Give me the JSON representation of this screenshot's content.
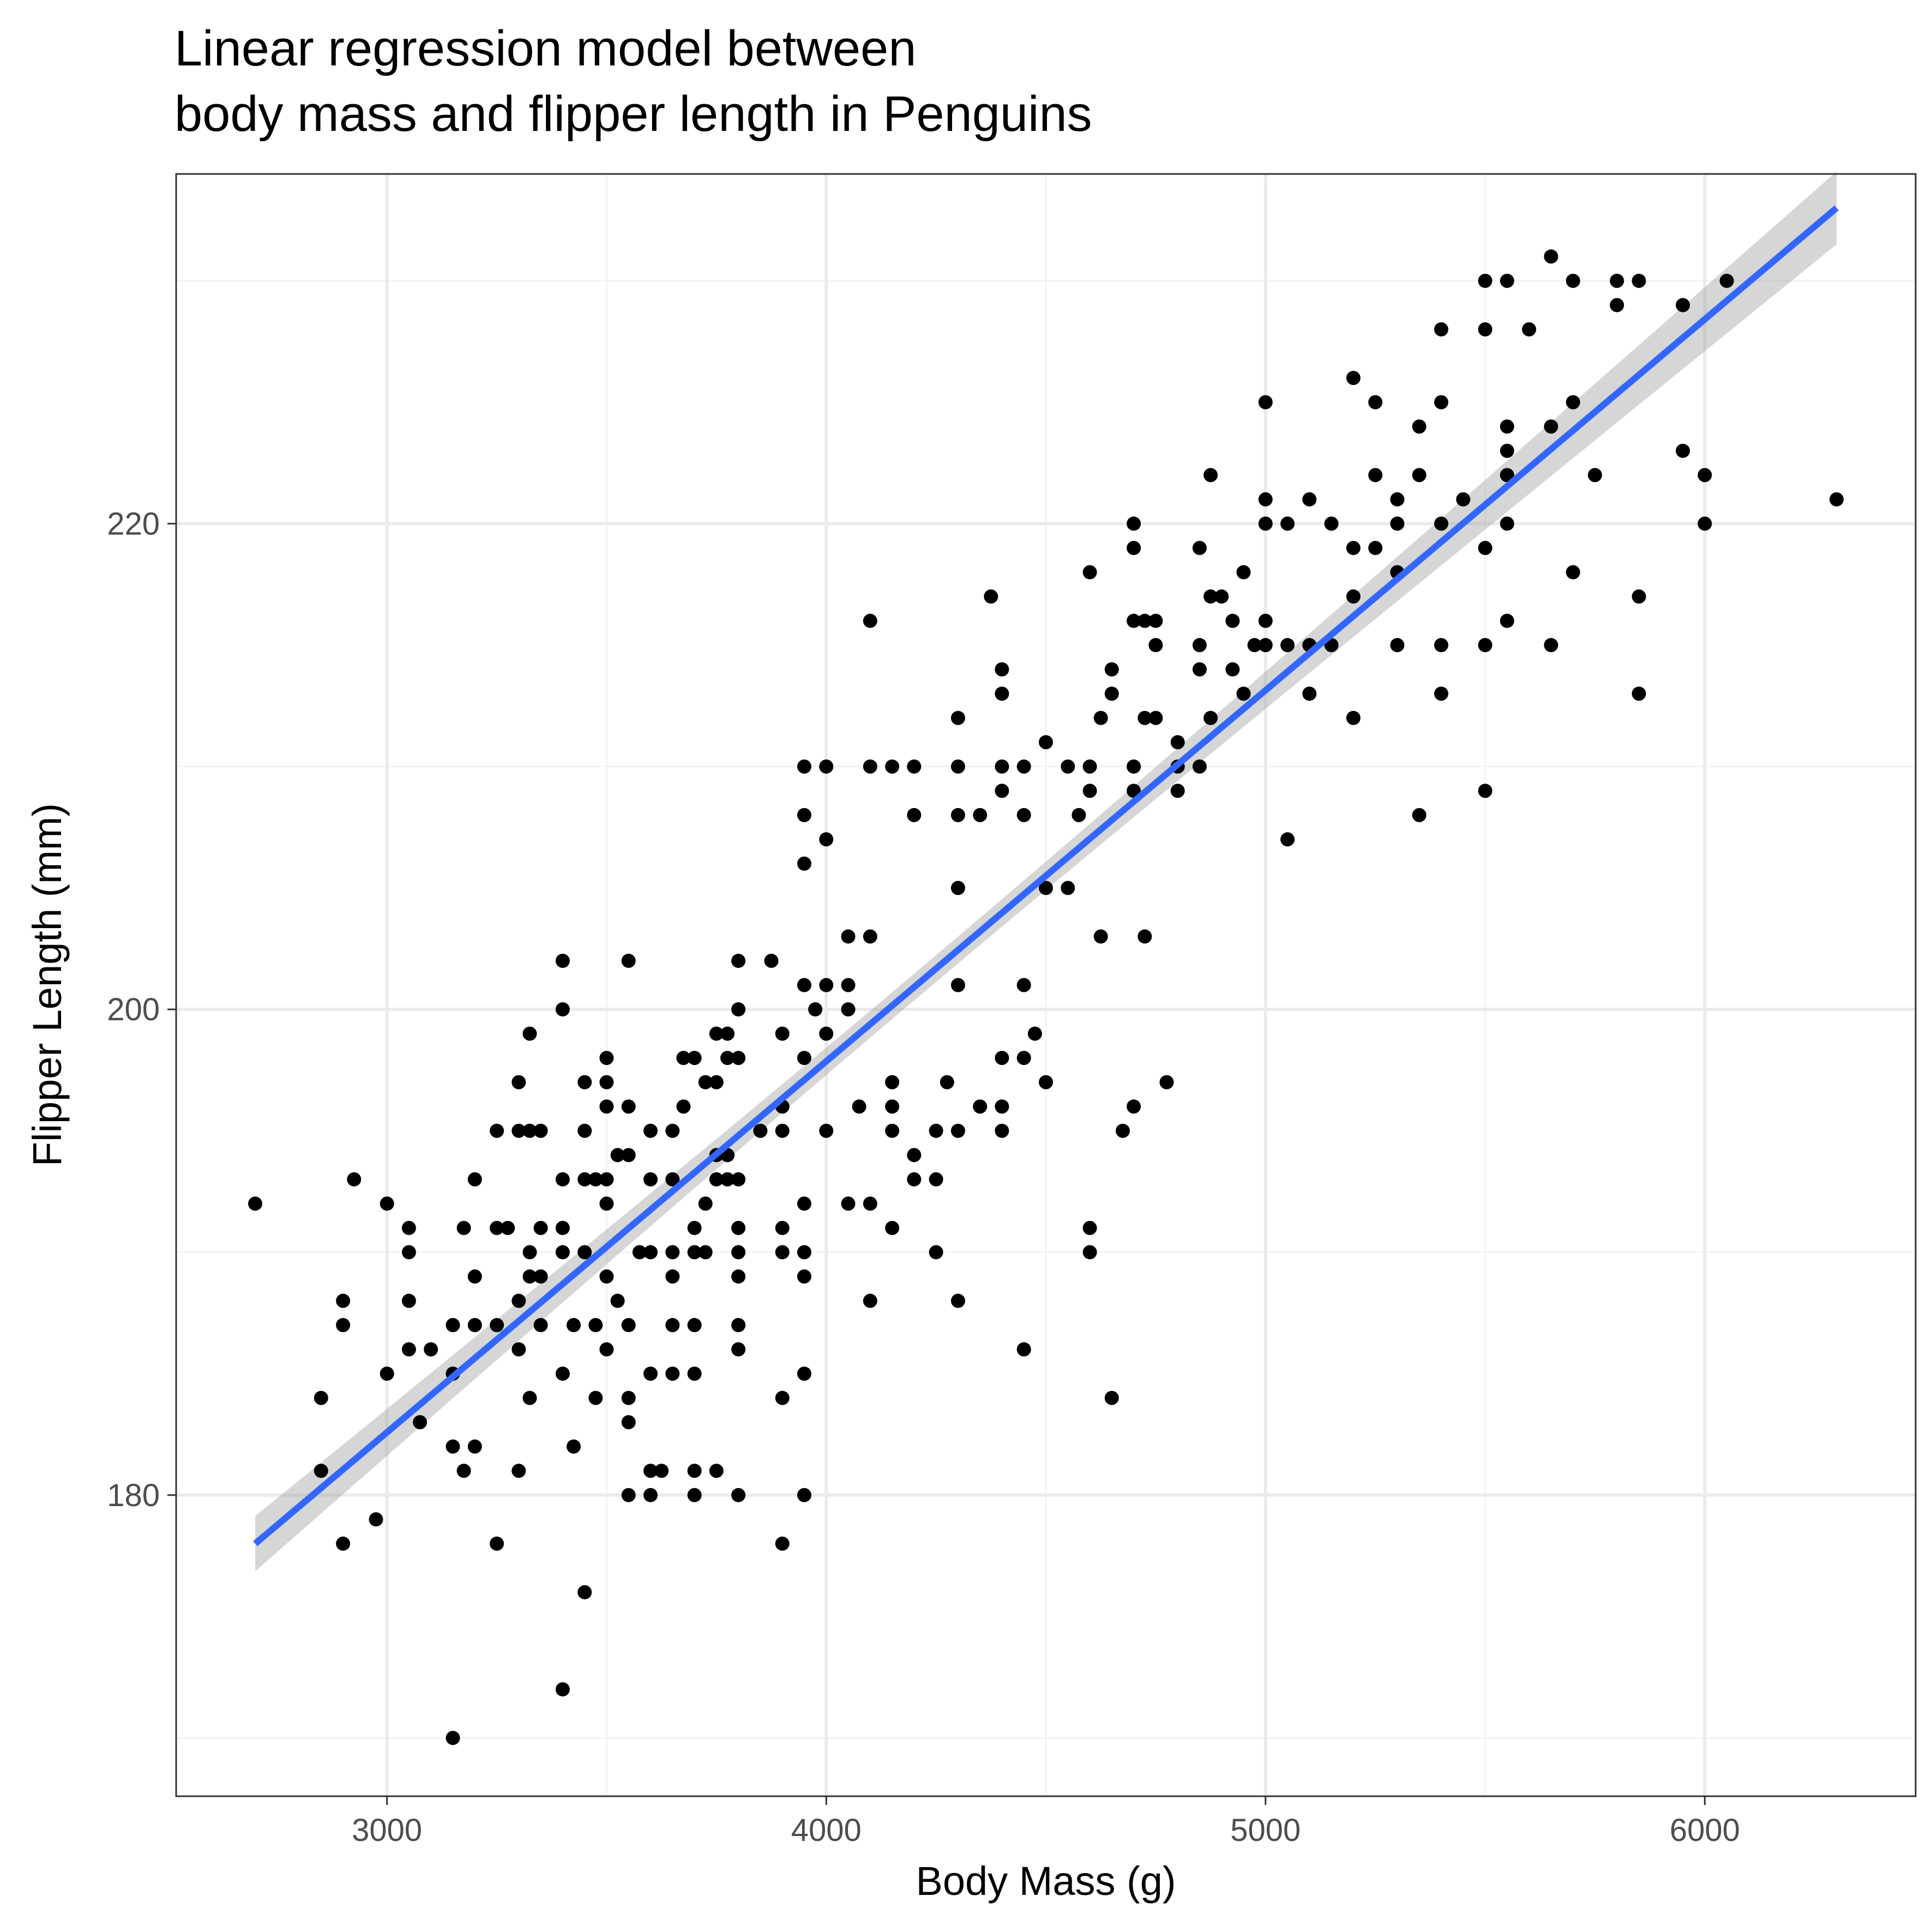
{
  "chart_data": {
    "type": "scatter",
    "title_lines": [
      "Linear regression model between",
      "body mass and flipper length in Penguins"
    ],
    "xlabel": "Body Mass (g)",
    "ylabel": "Flipper Length (mm)",
    "xlim": [
      2520,
      6480
    ],
    "ylim": [
      167.6,
      234.4
    ],
    "x_ticks": [
      3000,
      4000,
      5000,
      6000
    ],
    "x_tick_labels": [
      "3000",
      "4000",
      "5000",
      "6000"
    ],
    "x_minor_ticks": [
      3500,
      4500,
      5500
    ],
    "y_ticks": [
      180,
      200,
      220
    ],
    "y_tick_labels": [
      "180",
      "200",
      "220"
    ],
    "y_minor_ticks": [
      170,
      190,
      210,
      230
    ],
    "grid": true,
    "colors": {
      "points": "#000000",
      "line": "#3366FF",
      "ribbon": "#999999",
      "grid_major": "#ebebeb",
      "grid_minor": "#f3f3f3",
      "panel_border": "#333333",
      "tick_label": "#4d4d4d"
    },
    "regression": {
      "x": [
        2700,
        6300
      ],
      "y": [
        178.0,
        233.0
      ],
      "ci_halfwidth_ends": 1.5,
      "ci_halfwidth_center": 0.55,
      "x_center": 4200
    },
    "points": [
      [
        2700,
        192
      ],
      [
        2850,
        184
      ],
      [
        2850,
        181
      ],
      [
        2900,
        188
      ],
      [
        2900,
        187
      ],
      [
        2900,
        178
      ],
      [
        2925,
        193
      ],
      [
        2975,
        179
      ],
      [
        3000,
        192
      ],
      [
        3000,
        185
      ],
      [
        3050,
        191
      ],
      [
        3050,
        190
      ],
      [
        3050,
        188
      ],
      [
        3050,
        186
      ],
      [
        3075,
        183
      ],
      [
        3100,
        186
      ],
      [
        3150,
        187
      ],
      [
        3150,
        185
      ],
      [
        3150,
        182
      ],
      [
        3150,
        170
      ],
      [
        3175,
        191
      ],
      [
        3175,
        181
      ],
      [
        3200,
        193
      ],
      [
        3200,
        189
      ],
      [
        3200,
        187
      ],
      [
        3200,
        182
      ],
      [
        3250,
        195
      ],
      [
        3250,
        191
      ],
      [
        3250,
        187
      ],
      [
        3250,
        178
      ],
      [
        3275,
        191
      ],
      [
        3300,
        197
      ],
      [
        3300,
        195
      ],
      [
        3300,
        188
      ],
      [
        3300,
        186
      ],
      [
        3300,
        181
      ],
      [
        3325,
        199
      ],
      [
        3325,
        195
      ],
      [
        3325,
        190
      ],
      [
        3325,
        189
      ],
      [
        3325,
        184
      ],
      [
        3350,
        195
      ],
      [
        3350,
        191
      ],
      [
        3350,
        189
      ],
      [
        3350,
        187
      ],
      [
        3400,
        202
      ],
      [
        3400,
        200
      ],
      [
        3400,
        193
      ],
      [
        3400,
        191
      ],
      [
        3400,
        190
      ],
      [
        3400,
        185
      ],
      [
        3400,
        172
      ],
      [
        3425,
        187
      ],
      [
        3425,
        182
      ],
      [
        3450,
        197
      ],
      [
        3450,
        195
      ],
      [
        3450,
        193
      ],
      [
        3450,
        190
      ],
      [
        3450,
        176
      ],
      [
        3475,
        193
      ],
      [
        3475,
        187
      ],
      [
        3475,
        184
      ],
      [
        3500,
        198
      ],
      [
        3500,
        197
      ],
      [
        3500,
        196
      ],
      [
        3500,
        193
      ],
      [
        3500,
        192
      ],
      [
        3500,
        189
      ],
      [
        3500,
        186
      ],
      [
        3525,
        194
      ],
      [
        3525,
        188
      ],
      [
        3550,
        202
      ],
      [
        3550,
        196
      ],
      [
        3550,
        194
      ],
      [
        3550,
        187
      ],
      [
        3550,
        184
      ],
      [
        3550,
        183
      ],
      [
        3550,
        180
      ],
      [
        3575,
        190
      ],
      [
        3600,
        195
      ],
      [
        3600,
        193
      ],
      [
        3600,
        190
      ],
      [
        3600,
        185
      ],
      [
        3600,
        181
      ],
      [
        3600,
        180
      ],
      [
        3625,
        181
      ],
      [
        3650,
        195
      ],
      [
        3650,
        193
      ],
      [
        3650,
        190
      ],
      [
        3650,
        189
      ],
      [
        3650,
        187
      ],
      [
        3650,
        185
      ],
      [
        3675,
        196
      ],
      [
        3675,
        198
      ],
      [
        3700,
        198
      ],
      [
        3700,
        191
      ],
      [
        3700,
        190
      ],
      [
        3700,
        187
      ],
      [
        3700,
        185
      ],
      [
        3700,
        181
      ],
      [
        3700,
        180
      ],
      [
        3725,
        197
      ],
      [
        3725,
        192
      ],
      [
        3725,
        190
      ],
      [
        3750,
        199
      ],
      [
        3750,
        197
      ],
      [
        3750,
        194
      ],
      [
        3750,
        193
      ],
      [
        3750,
        181
      ],
      [
        3775,
        199
      ],
      [
        3775,
        198
      ],
      [
        3775,
        194
      ],
      [
        3775,
        193
      ],
      [
        3800,
        202
      ],
      [
        3800,
        200
      ],
      [
        3800,
        198
      ],
      [
        3800,
        193
      ],
      [
        3800,
        191
      ],
      [
        3800,
        190
      ],
      [
        3800,
        189
      ],
      [
        3800,
        187
      ],
      [
        3800,
        186
      ],
      [
        3800,
        180
      ],
      [
        3850,
        195
      ],
      [
        3875,
        202
      ],
      [
        3900,
        199
      ],
      [
        3900,
        196
      ],
      [
        3900,
        195
      ],
      [
        3900,
        191
      ],
      [
        3900,
        190
      ],
      [
        3900,
        184
      ],
      [
        3900,
        178
      ],
      [
        3950,
        210
      ],
      [
        3950,
        208
      ],
      [
        3950,
        206
      ],
      [
        3950,
        201
      ],
      [
        3950,
        198
      ],
      [
        3950,
        192
      ],
      [
        3950,
        190
      ],
      [
        3950,
        189
      ],
      [
        3950,
        185
      ],
      [
        3950,
        180
      ],
      [
        3975,
        200
      ],
      [
        4000,
        210
      ],
      [
        4000,
        207
      ],
      [
        4000,
        201
      ],
      [
        4000,
        199
      ],
      [
        4000,
        195
      ],
      [
        4050,
        203
      ],
      [
        4050,
        201
      ],
      [
        4050,
        200
      ],
      [
        4050,
        192
      ],
      [
        4075,
        196
      ],
      [
        4100,
        216
      ],
      [
        4100,
        210
      ],
      [
        4100,
        203
      ],
      [
        4100,
        192
      ],
      [
        4100,
        188
      ],
      [
        4150,
        210
      ],
      [
        4150,
        197
      ],
      [
        4150,
        196
      ],
      [
        4150,
        195
      ],
      [
        4150,
        191
      ],
      [
        4200,
        210
      ],
      [
        4200,
        208
      ],
      [
        4200,
        194
      ],
      [
        4200,
        193
      ],
      [
        4250,
        195
      ],
      [
        4250,
        193
      ],
      [
        4250,
        190
      ],
      [
        4275,
        197
      ],
      [
        4300,
        212
      ],
      [
        4300,
        210
      ],
      [
        4300,
        208
      ],
      [
        4300,
        205
      ],
      [
        4300,
        201
      ],
      [
        4300,
        195
      ],
      [
        4300,
        188
      ],
      [
        4350,
        208
      ],
      [
        4350,
        196
      ],
      [
        4375,
        217
      ],
      [
        4400,
        214
      ],
      [
        4400,
        213
      ],
      [
        4400,
        210
      ],
      [
        4400,
        209
      ],
      [
        4400,
        198
      ],
      [
        4400,
        196
      ],
      [
        4400,
        195
      ],
      [
        4450,
        210
      ],
      [
        4450,
        208
      ],
      [
        4450,
        201
      ],
      [
        4450,
        198
      ],
      [
        4450,
        186
      ],
      [
        4475,
        199
      ],
      [
        4500,
        211
      ],
      [
        4500,
        205
      ],
      [
        4500,
        197
      ],
      [
        4550,
        210
      ],
      [
        4550,
        205
      ],
      [
        4575,
        208
      ],
      [
        4600,
        218
      ],
      [
        4600,
        210
      ],
      [
        4600,
        209
      ],
      [
        4600,
        191
      ],
      [
        4600,
        190
      ],
      [
        4625,
        212
      ],
      [
        4625,
        203
      ],
      [
        4650,
        214
      ],
      [
        4650,
        213
      ],
      [
        4650,
        184
      ],
      [
        4675,
        195
      ],
      [
        4700,
        220
      ],
      [
        4700,
        219
      ],
      [
        4700,
        216
      ],
      [
        4700,
        210
      ],
      [
        4700,
        209
      ],
      [
        4700,
        196
      ],
      [
        4725,
        216
      ],
      [
        4725,
        212
      ],
      [
        4725,
        203
      ],
      [
        4750,
        216
      ],
      [
        4750,
        215
      ],
      [
        4750,
        212
      ],
      [
        4775,
        197
      ],
      [
        4800,
        211
      ],
      [
        4800,
        210
      ],
      [
        4800,
        209
      ],
      [
        4850,
        219
      ],
      [
        4850,
        215
      ],
      [
        4850,
        214
      ],
      [
        4850,
        210
      ],
      [
        4875,
        222
      ],
      [
        4875,
        217
      ],
      [
        4875,
        212
      ],
      [
        4900,
        217
      ],
      [
        4925,
        216
      ],
      [
        4925,
        214
      ],
      [
        4950,
        218
      ],
      [
        4950,
        213
      ],
      [
        4975,
        215
      ],
      [
        5000,
        225
      ],
      [
        5000,
        221
      ],
      [
        5000,
        220
      ],
      [
        5000,
        216
      ],
      [
        5000,
        215
      ],
      [
        5050,
        220
      ],
      [
        5050,
        215
      ],
      [
        5050,
        207
      ],
      [
        5100,
        221
      ],
      [
        5100,
        215
      ],
      [
        5100,
        213
      ],
      [
        5150,
        220
      ],
      [
        5150,
        215
      ],
      [
        5200,
        226
      ],
      [
        5200,
        219
      ],
      [
        5200,
        217
      ],
      [
        5200,
        212
      ],
      [
        5250,
        225
      ],
      [
        5250,
        222
      ],
      [
        5250,
        219
      ],
      [
        5300,
        221
      ],
      [
        5300,
        220
      ],
      [
        5300,
        218
      ],
      [
        5300,
        215
      ],
      [
        5350,
        224
      ],
      [
        5350,
        222
      ],
      [
        5350,
        208
      ],
      [
        5400,
        228
      ],
      [
        5400,
        225
      ],
      [
        5400,
        220
      ],
      [
        5400,
        215
      ],
      [
        5400,
        213
      ],
      [
        5450,
        221
      ],
      [
        5500,
        230
      ],
      [
        5500,
        228
      ],
      [
        5500,
        219
      ],
      [
        5500,
        215
      ],
      [
        5500,
        209
      ],
      [
        5550,
        230
      ],
      [
        5550,
        224
      ],
      [
        5550,
        223
      ],
      [
        5550,
        222
      ],
      [
        5550,
        220
      ],
      [
        5550,
        216
      ],
      [
        5600,
        228
      ],
      [
        5650,
        231
      ],
      [
        5650,
        224
      ],
      [
        5650,
        215
      ],
      [
        5700,
        230
      ],
      [
        5700,
        225
      ],
      [
        5700,
        218
      ],
      [
        5750,
        222
      ],
      [
        5800,
        230
      ],
      [
        5800,
        229
      ],
      [
        5850,
        230
      ],
      [
        5850,
        217
      ],
      [
        5850,
        213
      ],
      [
        5950,
        229
      ],
      [
        5950,
        223
      ],
      [
        6000,
        222
      ],
      [
        6000,
        220
      ],
      [
        6050,
        230
      ],
      [
        6300,
        221
      ]
    ]
  }
}
